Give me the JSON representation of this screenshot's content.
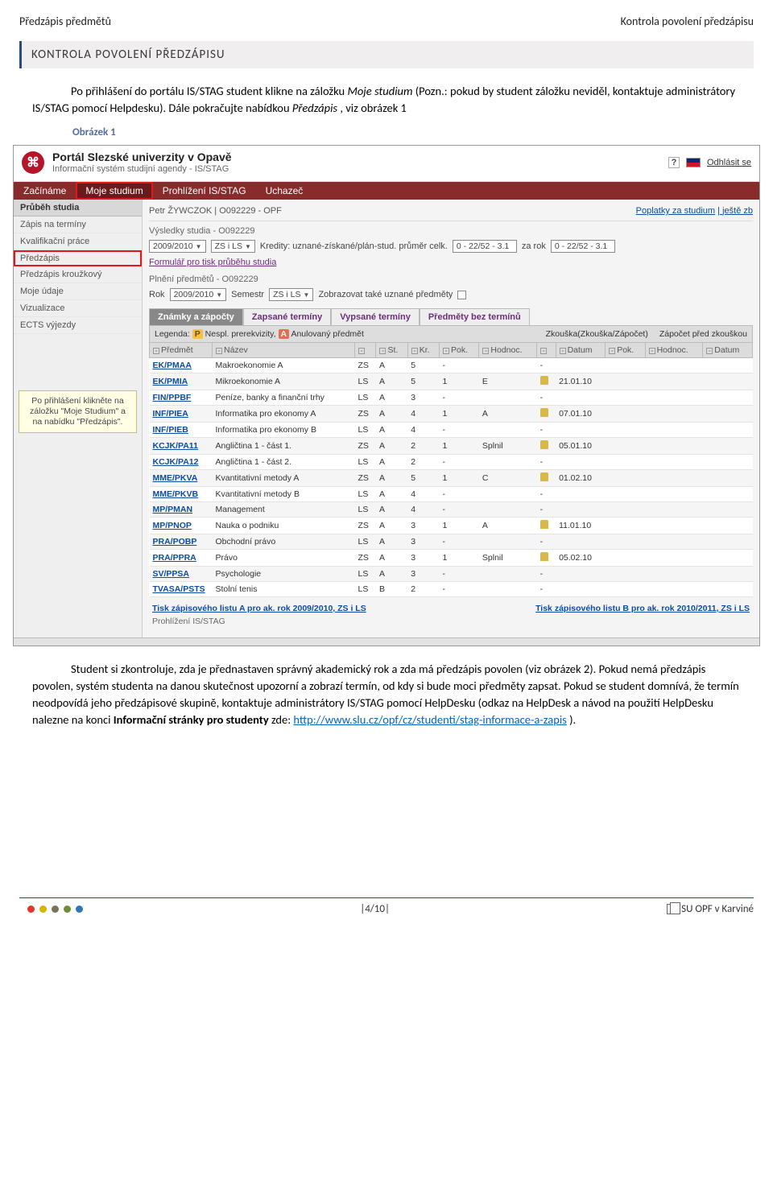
{
  "header": {
    "left": "Předzápis předmětů",
    "right": "Kontrola povolení předzápisu"
  },
  "section_heading": "KONTROLA POVOLENÍ PŘEDZÁPISU",
  "para1": {
    "a": "Po přihlášení do portálu IS/STAG student klikne na záložku ",
    "i1": "Moje studium",
    "b": " (Pozn.: pokud by student záložku neviděl, kontaktuje administrátory IS/STAG pomocí Helpdesku). Dále pokračujte nabídkou ",
    "i2": "Předzápis",
    "c": ", viz obrázek 1"
  },
  "caption1": "Obrázek 1",
  "shot": {
    "title1": "Portál Slezské univerzity v Opavě",
    "title2": "Informační systém studijní agendy - IS/STAG",
    "q": "?",
    "signout": "Odhlásit se",
    "nav": {
      "t1": "Začínáme",
      "t2": "Moje studium",
      "t3": "Prohlížení IS/STAG",
      "t4": "Uchazeč"
    },
    "sidebar": {
      "head": "Průběh studia",
      "items": [
        "Zápis na termíny",
        "Kvalifikační práce",
        "Předzápis",
        "Předzápis kroužkový",
        "Moje údaje",
        "Vizualizace",
        "ECTS výjezdy"
      ],
      "highlight_index": 2,
      "tooltip": "Po přihlášení klikněte na záložku \"Moje Studium\" a na nabídku \"Předzápis\"."
    },
    "userline": {
      "left": "Petr ŽYWCZOK | O092229 - OPF",
      "right": [
        "Poplatky za studium",
        "ještě zb"
      ]
    },
    "sub1": "Výsledky studia - O092229",
    "row1": {
      "year_sel": "2009/2010",
      "sem_sel": "ZS i LS",
      "t1": "Kredity: uznané-získané/plán-stud. průměr   celk.",
      "v1": "0 - 22/52 - 3.1",
      "t2": "za rok",
      "v2": "0 - 22/52 - 3.1"
    },
    "formlink": "Formulář pro tisk průběhu studia",
    "sub2": "Plnění předmětů - O092229",
    "row2": {
      "t1": "Rok",
      "y": "2009/2010",
      "t2": "Semestr",
      "s": "ZS i LS",
      "t3": "Zobrazovat také uznané předměty"
    },
    "tabs": [
      "Známky a zápočty",
      "Zapsané termíny",
      "Vypsané termíny",
      "Předměty bez termínů"
    ],
    "legend": {
      "l": "Legenda:",
      "p": "P",
      "p_t": "Nespl. prerekvizity,",
      "a": "A",
      "a_t": "Anulovaný předmět",
      "c1": "Zkouška(Zkouška/Zápočet)",
      "c2": "Zápočet před zkouškou"
    },
    "cols": [
      "Předmět",
      "Název",
      "",
      "St.",
      "Kr.",
      "Pok.",
      "Hodnoc.",
      "",
      "Datum",
      "Pok.",
      "Hodnoc.",
      "Datum"
    ],
    "rows": [
      [
        "EK/PMAA",
        "Makroekonomie A",
        "ZS",
        "A",
        "5",
        "-",
        "",
        "-",
        "",
        "",
        "",
        ""
      ],
      [
        "EK/PMIA",
        "Mikroekonomie A",
        "LS",
        "A",
        "5",
        "1",
        "E",
        "🔔",
        "21.01.10",
        "",
        "",
        ""
      ],
      [
        "FIN/PPBF",
        "Peníze, banky a finanční trhy",
        "LS",
        "A",
        "3",
        "-",
        "",
        "-",
        "",
        "",
        "",
        ""
      ],
      [
        "INF/PIEA",
        "Informatika pro ekonomy A",
        "ZS",
        "A",
        "4",
        "1",
        "A",
        "🔔",
        "07.01.10",
        "",
        "",
        ""
      ],
      [
        "INF/PIEB",
        "Informatika pro ekonomy B",
        "LS",
        "A",
        "4",
        "-",
        "",
        "-",
        "",
        "",
        "",
        ""
      ],
      [
        "KCJK/PA11",
        "Angličtina 1 - část 1.",
        "ZS",
        "A",
        "2",
        "1",
        "Splnil",
        "🔔",
        "05.01.10",
        "",
        "",
        ""
      ],
      [
        "KCJK/PA12",
        "Angličtina 1 - část 2.",
        "LS",
        "A",
        "2",
        "-",
        "",
        "-",
        "",
        "",
        "",
        ""
      ],
      [
        "MME/PKVA",
        "Kvantitativní metody A",
        "ZS",
        "A",
        "5",
        "1",
        "C",
        "🔔",
        "01.02.10",
        "",
        "",
        ""
      ],
      [
        "MME/PKVB",
        "Kvantitativní metody B",
        "LS",
        "A",
        "4",
        "-",
        "",
        "-",
        "",
        "",
        "",
        ""
      ],
      [
        "MP/PMAN",
        "Management",
        "LS",
        "A",
        "4",
        "-",
        "",
        "-",
        "",
        "",
        "",
        ""
      ],
      [
        "MP/PNOP",
        "Nauka o podniku",
        "ZS",
        "A",
        "3",
        "1",
        "A",
        "🔔",
        "11.01.10",
        "",
        "",
        ""
      ],
      [
        "PRA/POBP",
        "Obchodní právo",
        "LS",
        "A",
        "3",
        "-",
        "",
        "-",
        "",
        "",
        "",
        ""
      ],
      [
        "PRA/PPRA",
        "Právo",
        "ZS",
        "A",
        "3",
        "1",
        "Splnil",
        "🔔",
        "05.02.10",
        "",
        "",
        ""
      ],
      [
        "SV/PPSA",
        "Psychologie",
        "LS",
        "A",
        "3",
        "-",
        "",
        "-",
        "",
        "",
        "",
        ""
      ],
      [
        "TVASA/PSTS",
        "Stolní tenis",
        "LS",
        "B",
        "2",
        "-",
        "",
        "-",
        "",
        "",
        "",
        ""
      ]
    ],
    "bottom1": "Tisk zápisového listu A pro ak. rok 2009/2010, ZS i LS",
    "bottom2": "Tisk zápisového listu B pro ak. rok 2010/2011, ZS i LS",
    "prot": "Prohlížení IS/STAG"
  },
  "para2": {
    "a": "Student si zkontroluje, zda je přednastaven správný akademický rok a zda má předzápis povolen (viz obrázek 2). Pokud nemá předzápis povolen, systém studenta na danou skutečnost upozorní a zobrazí termín, od kdy si bude moci předměty zapsat. Pokud se student domnívá, že termín neodpovídá jeho předzápisové skupině, kontaktuje administrátory IS/STAG pomocí HelpDesku (odkaz na HelpDesk a návod na použití HelpDesku nalezne na konci ",
    "b": "Informační stránky pro studenty",
    "c": " zde: ",
    "url": "http://www.slu.cz/opf/cz/studenti/stag-informace-a-zapis",
    "d": " )."
  },
  "footer": {
    "dot_colors": [
      "#e3352e",
      "#d8b300",
      "#7a745e",
      "#728c36",
      "#2f78b8"
    ],
    "page": "|4/10|",
    "org": "SU OPF v Karviné"
  }
}
